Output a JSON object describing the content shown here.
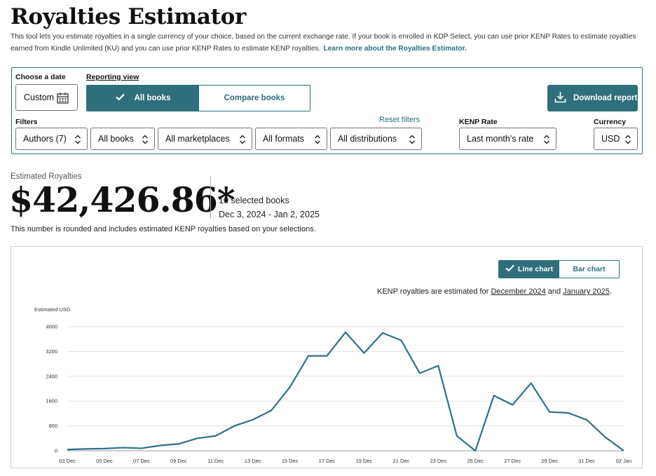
{
  "page": {
    "title": "Royalties Estimator",
    "description": "This tool lets you estimate royalties in a single currency of your choice, based on the current exchange rate. If your book is enrolled in KDP Select, you can use prior KENP Rates to estimate royalties earned from Kindle Unlimited (KU) and you can use prior KENP Rates to estimate KENP royalties.",
    "learn_more": "Learn more about the Royalties Estimator."
  },
  "controls": {
    "date_label": "Choose a date",
    "date_value": "Custom",
    "view_label": "Reporting view",
    "view_all": "All books",
    "view_compare": "Compare books",
    "download": "Download report",
    "filters_label": "Filters",
    "reset": "Reset filters",
    "authors": "Authors (7)",
    "books": "All books",
    "marketplaces": "All marketplaces",
    "formats": "All formats",
    "distributions": "All distributions",
    "kenp_label": "KENP Rate",
    "kenp_value": "Last month's rate",
    "currency_label": "Currency",
    "currency_value": "USD"
  },
  "summary": {
    "label": "Estimated Royalties",
    "value": "$42,426.86*",
    "books": "10 selected books",
    "range": "Dec 3, 2024 - Jan 2, 2025",
    "note": "This number is rounded and includes estimated KENP royalties based on your selections."
  },
  "chart_panel": {
    "line_chart": "Line chart",
    "bar_chart": "Bar chart",
    "kenp_prefix": "KENP royalties are estimated for",
    "kenp_month1": "December 2024",
    "kenp_and": "and",
    "kenp_month2": "January 2025",
    "kenp_suffix": "."
  },
  "chart_data": {
    "type": "line",
    "ylabel": "Estimated USD",
    "ylim": [
      0,
      4000
    ],
    "yticks": [
      0,
      800,
      1600,
      2400,
      3200,
      4000
    ],
    "x_tick_labels": [
      "03 Dec",
      "05 Dec",
      "07 Dec",
      "09 Dec",
      "11 Dec",
      "13 Dec",
      "15 Dec",
      "17 Dec",
      "19 Dec",
      "21 Dec",
      "23 Dec",
      "25 Dec",
      "27 Dec",
      "29 Dec",
      "31 Dec",
      "02 Jan"
    ],
    "x": [
      "03 Dec",
      "04 Dec",
      "05 Dec",
      "06 Dec",
      "07 Dec",
      "08 Dec",
      "09 Dec",
      "10 Dec",
      "11 Dec",
      "12 Dec",
      "13 Dec",
      "14 Dec",
      "15 Dec",
      "16 Dec",
      "17 Dec",
      "18 Dec",
      "19 Dec",
      "20 Dec",
      "21 Dec",
      "22 Dec",
      "23 Dec",
      "24 Dec",
      "25 Dec",
      "26 Dec",
      "27 Dec",
      "28 Dec",
      "29 Dec",
      "30 Dec",
      "31 Dec",
      "01 Jan",
      "02 Jan"
    ],
    "series": [
      {
        "color": "#2f6f8a",
        "values": [
          40,
          60,
          70,
          100,
          80,
          170,
          220,
          400,
          480,
          800,
          1000,
          1300,
          2050,
          3060,
          3060,
          3820,
          3150,
          3800,
          3560,
          2500,
          2740,
          480,
          0,
          1780,
          1480,
          2180,
          1250,
          1220,
          1000,
          440,
          0
        ]
      }
    ],
    "grid": true,
    "legend": "none"
  }
}
